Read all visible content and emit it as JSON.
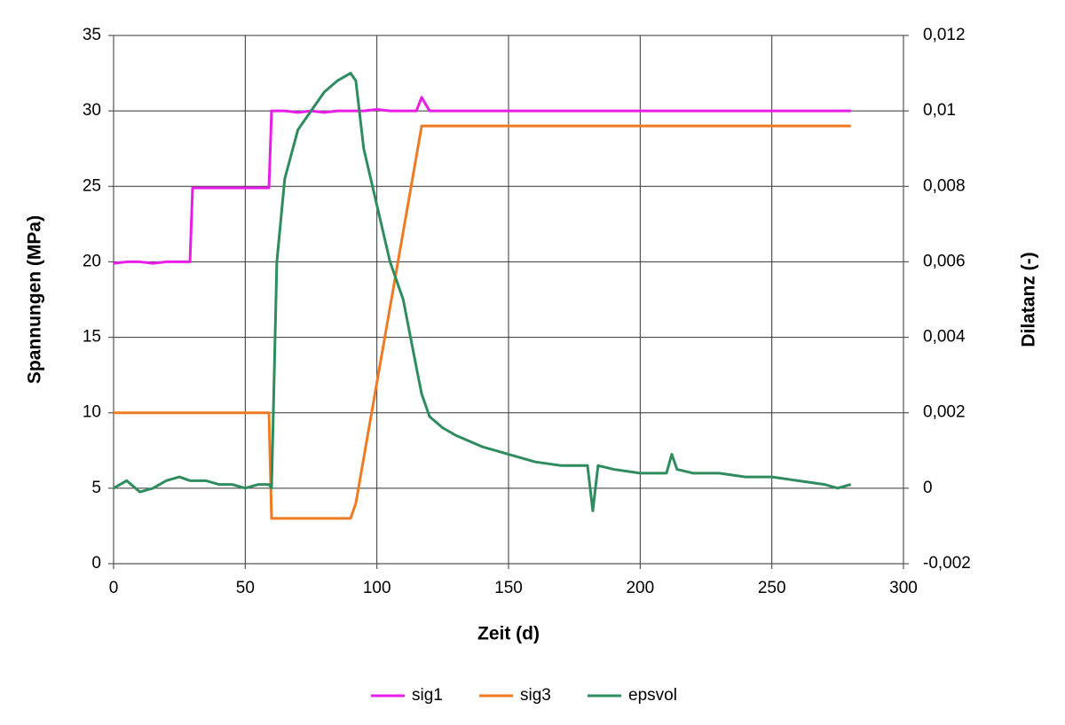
{
  "chart_data": {
    "type": "line",
    "x_label": "Zeit (d)",
    "y_label": "Spannungen (MPa)",
    "y2_label": "Dilatanz (-)",
    "x": [
      0,
      5,
      10,
      15,
      20,
      25,
      29,
      30,
      35,
      40,
      45,
      50,
      55,
      59,
      60,
      62,
      65,
      70,
      75,
      80,
      85,
      90,
      92,
      95,
      100,
      105,
      110,
      115,
      117,
      120,
      125,
      130,
      140,
      150,
      160,
      170,
      180,
      182,
      184,
      190,
      200,
      210,
      212,
      214,
      220,
      230,
      240,
      250,
      260,
      270,
      275,
      280
    ],
    "series": [
      {
        "name": "sig1",
        "color": "#e81ee8",
        "values": [
          19.9,
          20,
          20,
          19.9,
          20,
          20,
          20,
          24.9,
          24.9,
          24.9,
          24.9,
          24.9,
          24.9,
          24.9,
          30,
          30,
          30,
          29.9,
          30,
          29.9,
          30,
          30,
          30,
          30,
          30.1,
          30,
          30,
          30,
          30.9,
          30,
          30,
          30,
          30,
          30,
          30,
          30,
          30,
          30,
          30,
          30,
          30,
          30,
          30,
          30,
          30,
          30,
          30,
          30,
          30,
          30,
          30,
          30
        ]
      },
      {
        "name": "sig3",
        "color": "#f07a22",
        "values": [
          10,
          10,
          10,
          10,
          10,
          10,
          10,
          10,
          10,
          10,
          10,
          10,
          10,
          10,
          3,
          3,
          3,
          3,
          3,
          3,
          3,
          3,
          4,
          7,
          12,
          17,
          22,
          27,
          29,
          29,
          29,
          29,
          29,
          29,
          29,
          29,
          29,
          29,
          29,
          29,
          29,
          29,
          29,
          29,
          29,
          29,
          29,
          29,
          29,
          29,
          29,
          29
        ]
      },
      {
        "name": "epsvol",
        "color": "#2e8c5e",
        "axis": "y2",
        "values": [
          0,
          0.0002,
          -0.0001,
          0,
          0.0002,
          0.0003,
          0.0002,
          0.0002,
          0.0002,
          0.0001,
          0.0001,
          0,
          0.0001,
          0.0001,
          0,
          0.006,
          0.0082,
          0.0095,
          0.01,
          0.0105,
          0.0108,
          0.011,
          0.0108,
          0.009,
          0.0075,
          0.006,
          0.005,
          0.0032,
          0.0025,
          0.0019,
          0.0016,
          0.0014,
          0.0011,
          0.0009,
          0.0007,
          0.0006,
          0.0006,
          -0.0006,
          0.0006,
          0.0005,
          0.0004,
          0.0004,
          0.0009,
          0.0005,
          0.0004,
          0.0004,
          0.0003,
          0.0003,
          0.0002,
          0.0001,
          0,
          0.0001
        ]
      }
    ],
    "xlim": [
      0,
      300
    ],
    "xticks": [
      0,
      50,
      100,
      150,
      200,
      250,
      300
    ],
    "ylim": [
      0,
      35
    ],
    "yticks": [
      0,
      5,
      10,
      15,
      20,
      25,
      30,
      35
    ],
    "y2lim": [
      -0.002,
      0.012
    ],
    "y2ticks": [
      {
        "value": -0.002,
        "label": "-0,002"
      },
      0,
      {
        "value": 0.002,
        "label": "0,002"
      },
      {
        "value": 0.004,
        "label": "0,004"
      },
      {
        "value": 0.006,
        "label": "0,006"
      },
      {
        "value": 0.008,
        "label": "0,008"
      },
      {
        "value": 0.01,
        "label": "0,01"
      },
      {
        "value": 0.012,
        "label": "0,012"
      }
    ],
    "grid": true,
    "legend": "bottom"
  }
}
